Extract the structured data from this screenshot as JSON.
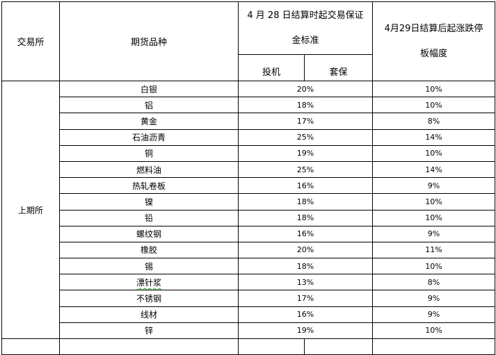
{
  "header": {
    "exchange": "交易所",
    "product": "期货品种",
    "margin_line1": "4 月 28 日结算时起交易保证",
    "margin_line2": "金标准",
    "speculation": "投机",
    "hedging": "套保",
    "limit_line1": "4月29日结算后起涨跌停",
    "limit_line2": "板幅度"
  },
  "exchange_name": "上期所",
  "rows": [
    {
      "product": "白银",
      "margin": "20%",
      "limit": "10%"
    },
    {
      "product": "铝",
      "margin": "18%",
      "limit": "10%"
    },
    {
      "product": "黄金",
      "margin": "17%",
      "limit": "8%"
    },
    {
      "product": "石油沥青",
      "margin": "25%",
      "limit": "14%"
    },
    {
      "product": "铜",
      "margin": "19%",
      "limit": "10%"
    },
    {
      "product": "燃料油",
      "margin": "25%",
      "limit": "14%"
    },
    {
      "product": "热轧卷板",
      "margin": "16%",
      "limit": "9%"
    },
    {
      "product": "镍",
      "margin": "18%",
      "limit": "10%"
    },
    {
      "product": "铅",
      "margin": "18%",
      "limit": "10%"
    },
    {
      "product": "螺纹钢",
      "margin": "16%",
      "limit": "9%"
    },
    {
      "product": "橡胶",
      "margin": "20%",
      "limit": "11%"
    },
    {
      "product": "锡",
      "margin": "18%",
      "limit": "10%"
    },
    {
      "product": "漂针浆",
      "margin": "13%",
      "limit": "8%"
    },
    {
      "product": "不锈钢",
      "margin": "17%",
      "limit": "9%"
    },
    {
      "product": "线材",
      "margin": "16%",
      "limit": "9%"
    },
    {
      "product": "锌",
      "margin": "19%",
      "limit": "10%"
    }
  ]
}
